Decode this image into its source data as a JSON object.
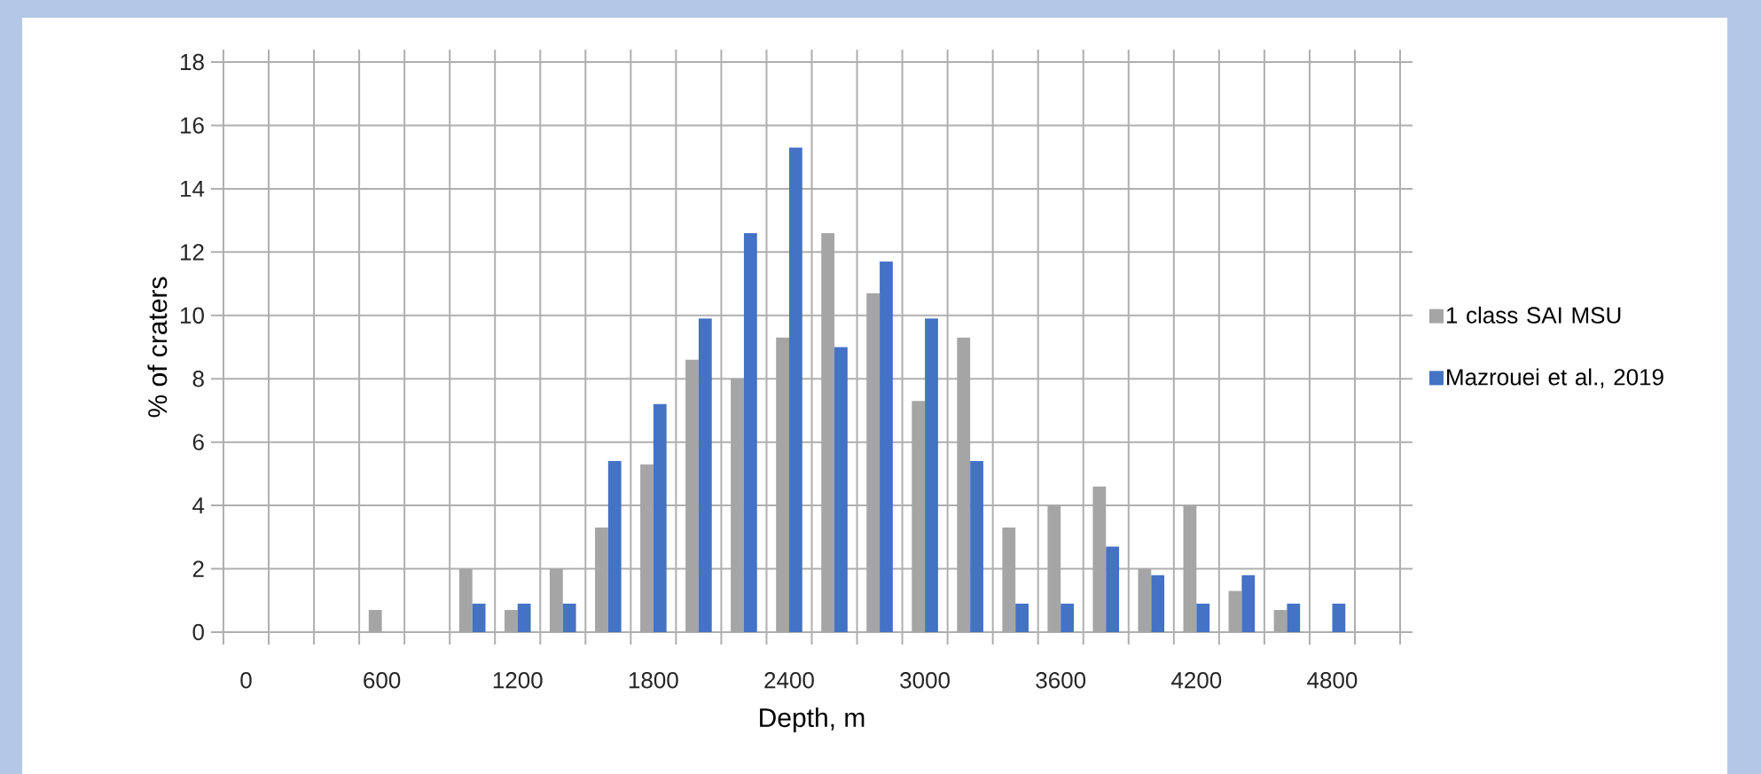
{
  "chart_data": {
    "type": "bar",
    "xlabel": "Depth, m",
    "ylabel": "% of craters",
    "categories": [
      "0",
      null,
      null,
      "600",
      null,
      null,
      "1200",
      null,
      null,
      "1800",
      null,
      null,
      "2400",
      null,
      null,
      "3000",
      null,
      null,
      "3600",
      null,
      null,
      "4200",
      null,
      null,
      "4800",
      null
    ],
    "series": [
      {
        "name": "1 class SAI MSU",
        "color": "#a5a5a5",
        "values": [
          0,
          0,
          0,
          0.7,
          0,
          2.0,
          0.7,
          2.0,
          3.3,
          5.3,
          8.6,
          8.0,
          9.3,
          12.6,
          10.7,
          7.3,
          9.3,
          3.3,
          4.0,
          4.6,
          2.0,
          4.0,
          1.3,
          0.7,
          0,
          0
        ]
      },
      {
        "name": "Mazrouei et al., 2019",
        "color": "#4472c4",
        "values": [
          0,
          0,
          0,
          0,
          0,
          0.9,
          0.9,
          0.9,
          5.4,
          7.2,
          9.9,
          12.6,
          15.3,
          9.0,
          11.7,
          9.9,
          5.4,
          0.9,
          0.9,
          2.7,
          1.8,
          0.9,
          1.8,
          0.9,
          0.9,
          0
        ]
      }
    ],
    "ylim": [
      0,
      18
    ],
    "yticks": [
      0,
      2,
      4,
      6,
      8,
      10,
      12,
      14,
      16,
      18
    ],
    "grid": true,
    "legend": "right"
  }
}
